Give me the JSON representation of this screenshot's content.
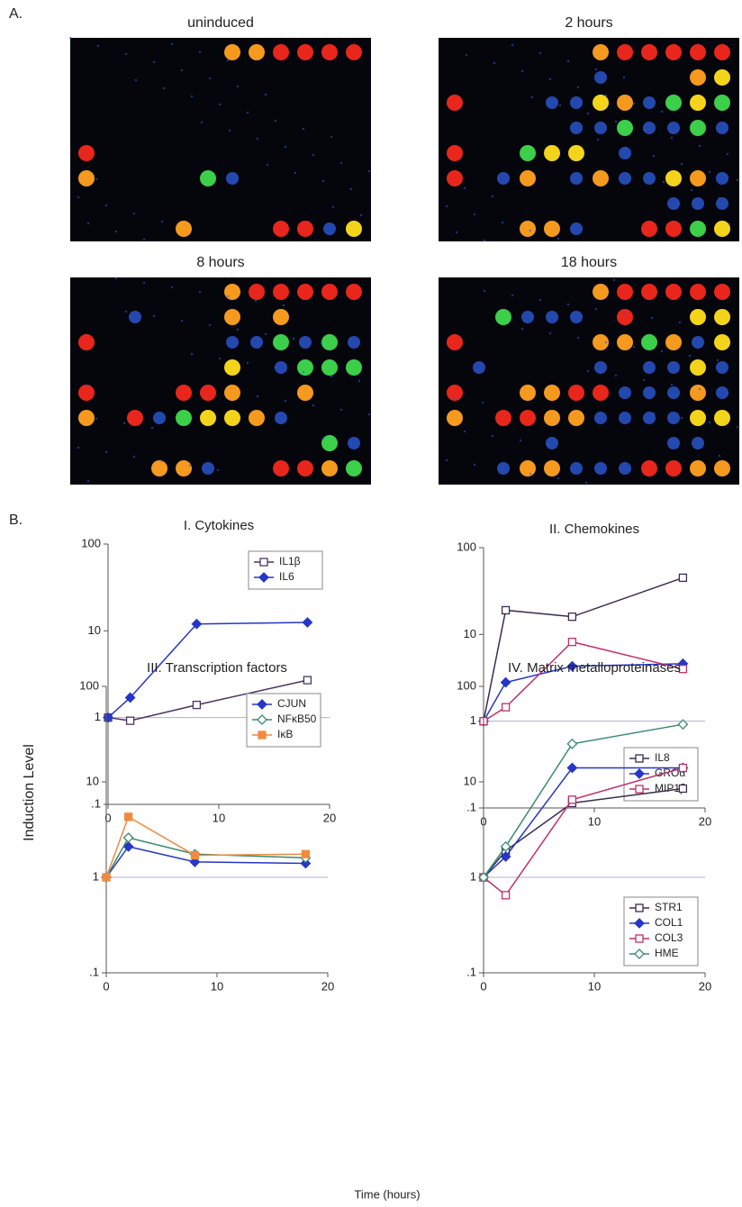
{
  "panel_a": {
    "label": "A.",
    "images": [
      {
        "title": "uninduced"
      },
      {
        "title": "2 hours"
      },
      {
        "title": "8 hours"
      },
      {
        "title": "18 hours"
      }
    ]
  },
  "panel_b": {
    "label": "B.",
    "y_label": "Induction Level",
    "x_label": "Time (hours)"
  },
  "chart_data": [
    {
      "type": "line",
      "title": "I. Cytokines",
      "x": [
        0,
        2,
        8,
        18
      ],
      "log_y": true,
      "reference_line": 1,
      "legend": "upper right",
      "xlim": [
        0,
        20
      ],
      "xticks": [
        0,
        10,
        20
      ],
      "ylim": [
        0.1,
        100
      ],
      "yticks": [
        {
          "value": 0.1,
          "label": ".1"
        },
        1,
        10,
        100
      ],
      "series": [
        {
          "name": "IL1β",
          "color": "#4a3462",
          "marker": "square-open",
          "values": [
            1,
            0.92,
            1.4,
            2.7
          ]
        },
        {
          "name": "IL6",
          "color": "#2636c8",
          "marker": "diamond",
          "values": [
            1,
            1.7,
            12,
            12.5
          ]
        }
      ]
    },
    {
      "type": "line",
      "title": "II. Chemokines",
      "x": [
        0,
        2,
        8,
        18
      ],
      "log_y": true,
      "reference_line": 1,
      "legend": "lower right",
      "xlim": [
        0,
        20
      ],
      "xticks": [
        0,
        10,
        20
      ],
      "ylim": [
        0.1,
        100
      ],
      "yticks": [
        {
          "value": 0.1,
          "label": ".1"
        },
        1,
        10,
        100
      ],
      "series": [
        {
          "name": "IL8",
          "color": "#3a2c52",
          "marker": "square-open",
          "values": [
            1,
            19,
            16,
            45
          ]
        },
        {
          "name": "GROα",
          "color": "#2636c8",
          "marker": "diamond",
          "values": [
            1,
            2.8,
            4.3,
            4.6
          ]
        },
        {
          "name": "MIP1β",
          "color": "#c0306a",
          "marker": "square-open",
          "values": [
            1,
            1.45,
            8.2,
            4
          ]
        }
      ]
    },
    {
      "type": "line",
      "title": "III. Transcription factors",
      "x": [
        0,
        2,
        8,
        18
      ],
      "log_y": true,
      "reference_line": 1,
      "legend": "upper right",
      "xlim": [
        0,
        20
      ],
      "xticks": [
        0,
        10,
        20
      ],
      "ylim": [
        0.1,
        100
      ],
      "yticks": [
        {
          "value": 0.1,
          "label": ".1"
        },
        1,
        10,
        100
      ],
      "series": [
        {
          "name": "CJUN",
          "color": "#2636c8",
          "marker": "diamond",
          "values": [
            1,
            2.1,
            1.45,
            1.4
          ]
        },
        {
          "name": "NFκB50",
          "color": "#3a8a70",
          "marker": "diamond-open",
          "values": [
            1,
            2.6,
            1.75,
            1.6
          ]
        },
        {
          "name": "IκB",
          "color": "#f08a40",
          "marker": "square",
          "values": [
            1,
            4.3,
            1.7,
            1.75
          ]
        }
      ]
    },
    {
      "type": "line",
      "title": "IV. Matrix metalloproteinases",
      "x": [
        0,
        2,
        8,
        18
      ],
      "log_y": true,
      "reference_line": 1,
      "legend": "lower right",
      "xlim": [
        0,
        20
      ],
      "xticks": [
        0,
        10,
        20
      ],
      "ylim": [
        0.1,
        100
      ],
      "yticks": [
        {
          "value": 0.1,
          "label": ".1"
        },
        1,
        10,
        100
      ],
      "series": [
        {
          "name": "STR1",
          "color": "#3a2c52",
          "marker": "square-open",
          "values": [
            1,
            1.9,
            6,
            8.5
          ]
        },
        {
          "name": "COL1",
          "color": "#2636c8",
          "marker": "diamond",
          "values": [
            1,
            1.65,
            14,
            14
          ]
        },
        {
          "name": "COL3",
          "color": "#c0306a",
          "marker": "square-open",
          "values": [
            1,
            0.65,
            6.5,
            14
          ]
        },
        {
          "name": "HME",
          "color": "#3a8a70",
          "marker": "diamond-open",
          "values": [
            1,
            2.1,
            25,
            40
          ]
        }
      ]
    }
  ]
}
